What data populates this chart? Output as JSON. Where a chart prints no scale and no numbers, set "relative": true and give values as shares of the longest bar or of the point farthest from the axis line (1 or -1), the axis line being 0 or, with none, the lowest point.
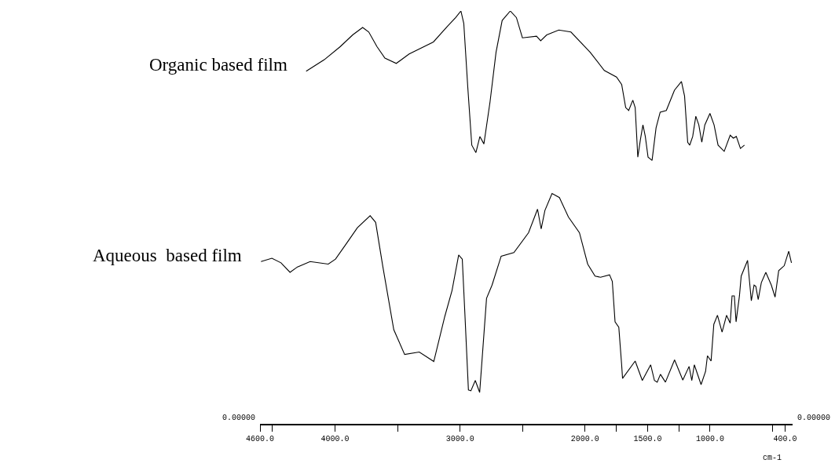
{
  "chart_data": {
    "type": "line",
    "relative": true,
    "xlabel": "cm-1",
    "legend": false,
    "marker": "none",
    "line_style": "solid",
    "xlim": [
      4600,
      340
    ],
    "xticks": [
      {
        "value": 4600,
        "label": "4600.0"
      },
      {
        "value": 4500,
        "label": null
      },
      {
        "value": 4000,
        "label": "4000.0"
      },
      {
        "value": 3500,
        "label": null
      },
      {
        "value": 3000,
        "label": "3000.0"
      },
      {
        "value": 2500,
        "label": null
      },
      {
        "value": 2000,
        "label": "2000.0"
      },
      {
        "value": 1750,
        "label": null
      },
      {
        "value": 1500,
        "label": "1500.0"
      },
      {
        "value": 1250,
        "label": null
      },
      {
        "value": 1000,
        "label": "1000.0"
      },
      {
        "value": 500,
        "label": null
      },
      {
        "value": 400,
        "label": "400.0"
      }
    ],
    "annotations": [
      "0.00000",
      "0.00000"
    ],
    "series": [
      {
        "name": "Organic based film",
        "color": "#000000",
        "x": [
          4231,
          4086,
          3957,
          3859,
          3779,
          3730,
          3665,
          3601,
          3510,
          3407,
          3213,
          3100,
          3035,
          2993,
          2970,
          2938,
          2906,
          2873,
          2841,
          2809,
          2760,
          2712,
          2663,
          2598,
          2549,
          2501,
          2388,
          2355,
          2307,
          2210,
          2113,
          1959,
          1846,
          1748,
          1707,
          1675,
          1651,
          1618,
          1599,
          1578,
          1557,
          1537,
          1518,
          1496,
          1464,
          1432,
          1399,
          1350,
          1285,
          1229,
          1204,
          1179,
          1163,
          1139,
          1114,
          1090,
          1066,
          1042,
          1001,
          968,
          936,
          887,
          839,
          814,
          790,
          757,
          725
        ],
        "values": [
          0.854,
          0.882,
          0.914,
          0.942,
          0.96,
          0.949,
          0.914,
          0.886,
          0.873,
          0.896,
          0.925,
          0.963,
          0.984,
          1.0,
          0.97,
          0.815,
          0.675,
          0.657,
          0.696,
          0.678,
          0.78,
          0.9,
          0.977,
          1.0,
          0.984,
          0.935,
          0.939,
          0.928,
          0.942,
          0.954,
          0.949,
          0.9,
          0.856,
          0.84,
          0.822,
          0.766,
          0.759,
          0.784,
          0.766,
          0.646,
          0.689,
          0.724,
          0.696,
          0.646,
          0.638,
          0.717,
          0.755,
          0.759,
          0.808,
          0.829,
          0.794,
          0.682,
          0.675,
          0.696,
          0.745,
          0.724,
          0.682,
          0.724,
          0.752,
          0.724,
          0.675,
          0.66,
          0.699,
          0.692,
          0.696,
          0.667,
          0.675
        ]
      },
      {
        "name": "Aqueous  based film",
        "color": "#000000",
        "x": [
          4592,
          4505,
          4432,
          4360,
          4301,
          4199,
          4054,
          3996,
          3908,
          3821,
          3719,
          3675,
          3617,
          3530,
          3443,
          3326,
          3210,
          3122,
          3064,
          3011,
          2982,
          2962,
          2933,
          2913,
          2878,
          2843,
          2788,
          2744,
          2671,
          2569,
          2452,
          2380,
          2351,
          2321,
          2264,
          2205,
          2133,
          2045,
          1979,
          1920,
          1876,
          1804,
          1782,
          1760,
          1730,
          1708,
          1700,
          1599,
          1542,
          1475,
          1445,
          1423,
          1397,
          1357,
          1284,
          1218,
          1168,
          1146,
          1126,
          1072,
          1036,
          1021,
          992,
          970,
          941,
          904,
          868,
          839,
          824,
          806,
          792,
          765,
          751,
          700,
          670,
          648,
          634,
          615,
          590,
          554,
          510,
          480,
          451,
          407,
          371,
          349
        ],
        "values": [
          0.393,
          0.401,
          0.39,
          0.367,
          0.38,
          0.393,
          0.387,
          0.399,
          0.437,
          0.475,
          0.504,
          0.488,
          0.38,
          0.228,
          0.168,
          0.174,
          0.151,
          0.26,
          0.323,
          0.409,
          0.399,
          0.272,
          0.082,
          0.08,
          0.105,
          0.076,
          0.304,
          0.336,
          0.406,
          0.415,
          0.463,
          0.52,
          0.472,
          0.517,
          0.558,
          0.548,
          0.501,
          0.463,
          0.387,
          0.358,
          0.355,
          0.361,
          0.345,
          0.247,
          0.234,
          0.146,
          0.11,
          0.152,
          0.105,
          0.143,
          0.105,
          0.101,
          0.12,
          0.101,
          0.155,
          0.106,
          0.139,
          0.105,
          0.143,
          0.095,
          0.127,
          0.165,
          0.152,
          0.241,
          0.263,
          0.222,
          0.263,
          0.244,
          0.31,
          0.31,
          0.247,
          0.31,
          0.358,
          0.396,
          0.298,
          0.336,
          0.333,
          0.301,
          0.342,
          0.367,
          0.336,
          0.307,
          0.371,
          0.383,
          0.418,
          0.39
        ]
      }
    ]
  }
}
